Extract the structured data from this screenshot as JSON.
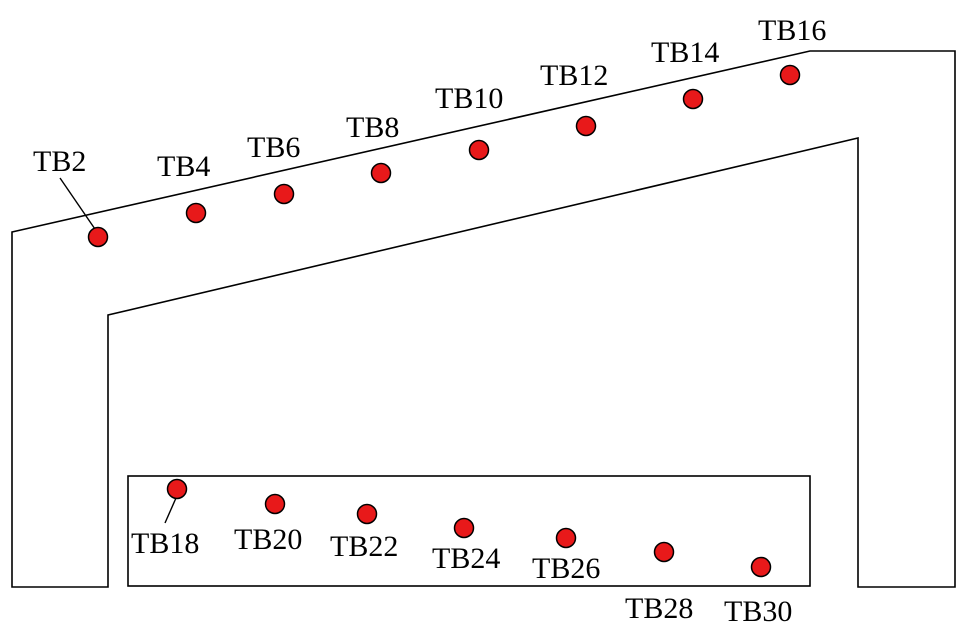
{
  "colors": {
    "marker_fill": "#e8191a",
    "line": "#000000",
    "background": "#ffffff"
  },
  "top_points": [
    {
      "label": "TB2"
    },
    {
      "label": "TB4"
    },
    {
      "label": "TB6"
    },
    {
      "label": "TB8"
    },
    {
      "label": "TB10"
    },
    {
      "label": "TB12"
    },
    {
      "label": "TB14"
    },
    {
      "label": "TB16"
    }
  ],
  "bottom_points": [
    {
      "label": "TB18"
    },
    {
      "label": "TB20"
    },
    {
      "label": "TB22"
    },
    {
      "label": "TB24"
    },
    {
      "label": "TB26"
    },
    {
      "label": "TB28"
    },
    {
      "label": "TB30"
    }
  ]
}
